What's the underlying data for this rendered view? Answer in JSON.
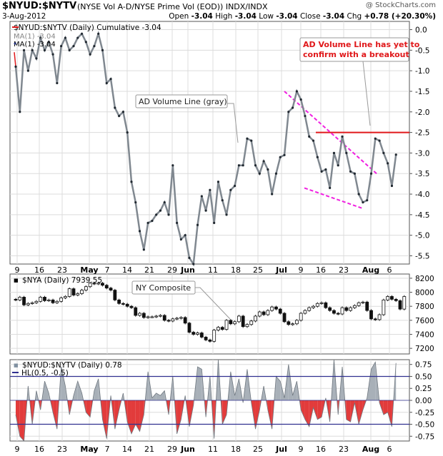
{
  "header": {
    "symbol": "$NYUD:$NYTV",
    "description": "(NYSE Vol A-D/NYSE Prime Vol (EOD))  INDX/INDX",
    "watermark": "@ StockCharts.com",
    "date": "3-Aug-2012",
    "ohlc": {
      "open_label": "Open",
      "open": "-3.04",
      "high_label": "High",
      "high": "-3.04",
      "low_label": "Low",
      "low": "-3.04",
      "close_label": "Close",
      "close": "-3.04",
      "chg_label": "Chg",
      "chg": "+0.78 (+20.30%)"
    }
  },
  "colors": {
    "gray_line": "#808890",
    "red": "#e0181a",
    "magenta": "#f020e0",
    "grid": "#dcdcdc",
    "histo_red": "#e23b3b",
    "histo_gray": "#a8b0b8"
  },
  "chart_data": [
    {
      "type": "line",
      "panel": "main",
      "legend": [
        "$NYUD:$NYTV (Daily) Cumulative -3.04",
        "MA(1) -3.04",
        "MA(1) -3.04"
      ],
      "ylim": [
        -5.7,
        0.2
      ],
      "yticks": [
        "0.0",
        "-0.5",
        "-1.0",
        "-1.5",
        "-2.0",
        "-2.5",
        "-3.0",
        "-3.5",
        "-4.0",
        "-4.5",
        "-5.0",
        "-5.5"
      ],
      "ytick_values": [
        0,
        -0.5,
        -1,
        -1.5,
        -2,
        -2.5,
        -3,
        -3.5,
        -4,
        -4.5,
        -5,
        -5.5
      ],
      "series": [
        {
          "values": [
            -0.9,
            -2.0,
            -0.5,
            -1.0,
            -0.5,
            -0.7,
            -0.2,
            -0.5,
            -0.3,
            -0.6,
            -1.3,
            -0.4,
            -0.2,
            -0.5,
            -0.4,
            -0.2,
            -0.1,
            -0.3,
            -0.6,
            -0.4,
            -0.1,
            -0.5,
            -1.3,
            -1.2,
            -1.9,
            -2.1,
            -2.0,
            -2.5,
            -3.7,
            -4.2,
            -4.9,
            -5.35,
            -4.7,
            -4.65,
            -4.5,
            -4.4,
            -4.2,
            -4.5,
            -3.3,
            -4.7,
            -5.1,
            -5.0,
            -5.55,
            -5.7,
            -4.75,
            -4.05,
            -4.4,
            -3.9,
            -4.7,
            -3.7,
            -4.15,
            -4.5,
            -3.9,
            -3.8,
            -3.3,
            -3.3,
            -2.65,
            -2.7,
            -3.3,
            -3.5,
            -3.2,
            -3.4,
            -4.0,
            -3.5,
            -3.1,
            -3.05,
            -2.0,
            -1.9,
            -1.5,
            -1.7,
            -2.1,
            -2.6,
            -2.7,
            -3.1,
            -3.45,
            -3.4,
            -3.85,
            -3.0,
            -3.3,
            -2.6,
            -3.0,
            -3.45,
            -3.5,
            -4.0,
            -4.2,
            -4.15,
            -3.5,
            -2.65,
            -2.7,
            -3.0,
            -3.25,
            -3.8,
            -3.04
          ]
        }
      ],
      "annotations": {
        "ad_label": "AD Volume Line (gray)",
        "red_note": "AD Volume Line has yet to confirm with a breakout",
        "resistance_level": -2.5
      }
    },
    {
      "type": "ohlc",
      "panel": "middle",
      "legend": "$NYA (Daily) 7939.55",
      "ylim": [
        7120,
        8260
      ],
      "yticks": [
        "8200",
        "8000",
        "7800",
        "7600",
        "7400",
        "7200"
      ],
      "ytick_values": [
        8200,
        8000,
        7800,
        7600,
        7400,
        7200
      ],
      "series": [
        {
          "close": [
            7890,
            7930,
            7820,
            7840,
            7850,
            7870,
            7930,
            7880,
            7890,
            7850,
            7870,
            7920,
            7940,
            8050,
            7960,
            7980,
            8030,
            8080,
            8130,
            8120,
            8130,
            8100,
            8060,
            8030,
            7890,
            7840,
            7830,
            7800,
            7780,
            7670,
            7700,
            7640,
            7650,
            7650,
            7660,
            7670,
            7600,
            7590,
            7620,
            7630,
            7640,
            7560,
            7430,
            7400,
            7420,
            7360,
            7320,
            7300,
            7460,
            7500,
            7470,
            7600,
            7550,
            7580,
            7660,
            7510,
            7540,
            7590,
            7660,
            7720,
            7680,
            7740,
            7790,
            7760,
            7700,
            7580,
            7540,
            7550,
            7600,
            7700,
            7740,
            7780,
            7800,
            7840,
            7850,
            7780,
            7740,
            7700,
            7690,
            7780,
            7740,
            7780,
            7810,
            7850,
            7860,
            7740,
            7620,
            7610,
            7680,
            7890,
            7940,
            7900,
            7880,
            7760,
            7939.55
          ]
        }
      ],
      "annotation": "NY Composite"
    },
    {
      "type": "area",
      "panel": "bottom",
      "legend": [
        "$NYUD:$NYTV (Daily) 0.78",
        "HL(0.5, -0.5)"
      ],
      "ylim": [
        -0.85,
        0.85
      ],
      "yticks": [
        "0.75",
        "0.50",
        "0.25",
        "0.00",
        "-0.25",
        "-0.50",
        "-0.75"
      ],
      "ytick_values": [
        0.75,
        0.5,
        0.25,
        0,
        -0.25,
        -0.5,
        -0.75
      ],
      "series": [
        {
          "values": [
            -0.3,
            -0.75,
            -0.85,
            0.3,
            -0.5,
            0.2,
            -0.2,
            0.4,
            0.15,
            -0.25,
            -0.6,
            0.7,
            0.3,
            -0.3,
            0.1,
            0.4,
            0.15,
            -0.25,
            -0.35,
            0.2,
            0.45,
            -0.4,
            -0.8,
            0.1,
            -0.6,
            -0.2,
            0.15,
            -0.45,
            -0.7,
            -0.5,
            -0.65,
            -0.3,
            0.6,
            0.05,
            0.15,
            0.1,
            0.2,
            -0.3,
            0.5,
            -0.7,
            -0.4,
            0.1,
            -0.55,
            -0.1,
            0.7,
            0.65,
            -0.35,
            0.5,
            -0.8,
            0.85,
            -0.5,
            -0.3,
            0.6,
            0.1,
            0.45,
            -0.05,
            0.65,
            -0.05,
            -0.6,
            -0.2,
            0.3,
            -0.2,
            -0.6,
            0.5,
            0.4,
            0.05,
            0.75,
            0.1,
            0.4,
            -0.2,
            -0.4,
            -0.55,
            -0.15,
            -0.4,
            -0.35,
            0.05,
            -0.45,
            0.85,
            -0.3,
            0.7,
            -0.4,
            -0.45,
            -0.05,
            -0.5,
            -0.2,
            0.05,
            0.65,
            0.8,
            -0.05,
            -0.3,
            -0.25,
            -0.55,
            0.78
          ]
        }
      ],
      "hl": [
        0.5,
        -0.5
      ]
    }
  ],
  "xaxis": {
    "labels": [
      "9",
      "16",
      "23",
      "May",
      "7",
      "14",
      "21",
      "29",
      "Jun",
      "11",
      "18",
      "25",
      "Jul",
      "9",
      "16",
      "23",
      "Aug",
      "6"
    ],
    "bold": [
      "May",
      "Jun",
      "Jul",
      "Aug"
    ]
  }
}
